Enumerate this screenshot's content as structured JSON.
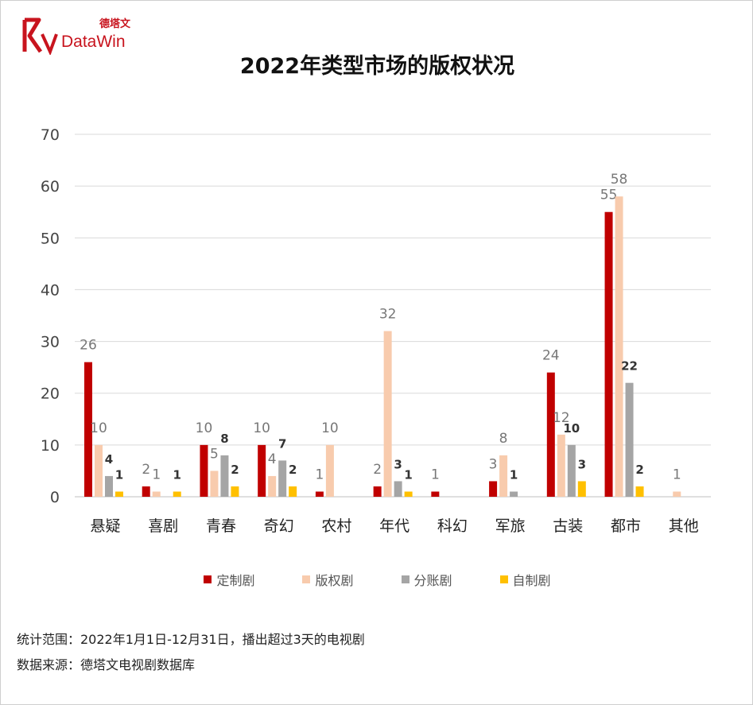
{
  "logo": {
    "cn": "德塔文",
    "en": "DataWin"
  },
  "chart_data": {
    "type": "bar",
    "title": "2022年类型市场的版权状况",
    "categories": [
      "悬疑",
      "喜剧",
      "青春",
      "奇幻",
      "农村",
      "年代",
      "科幻",
      "军旅",
      "古装",
      "都市",
      "其他"
    ],
    "series": [
      {
        "name": "定制剧",
        "color": "#c00000",
        "values": [
          26,
          2,
          10,
          10,
          1,
          2,
          1,
          3,
          24,
          55,
          null
        ]
      },
      {
        "name": "版权剧",
        "color": "#f8cbad",
        "values": [
          10,
          1,
          5,
          4,
          10,
          32,
          null,
          8,
          12,
          58,
          1
        ]
      },
      {
        "name": "分账剧",
        "color": "#a5a5a5",
        "values": [
          4,
          null,
          8,
          7,
          null,
          3,
          null,
          1,
          10,
          22,
          null
        ]
      },
      {
        "name": "自制剧",
        "color": "#ffc000",
        "values": [
          1,
          1,
          2,
          2,
          null,
          1,
          null,
          null,
          3,
          2,
          null
        ]
      }
    ],
    "ylim": [
      0,
      70
    ],
    "yticks": [
      0,
      10,
      20,
      30,
      40,
      50,
      60,
      70
    ],
    "xlabel": "",
    "ylabel": "",
    "grid": true,
    "legend": "bottom"
  },
  "notes": {
    "scope": "统计范围：2022年1月1日-12月31日，播出超过3天的电视剧",
    "source": "数据来源：德塔文电视剧数据库"
  }
}
